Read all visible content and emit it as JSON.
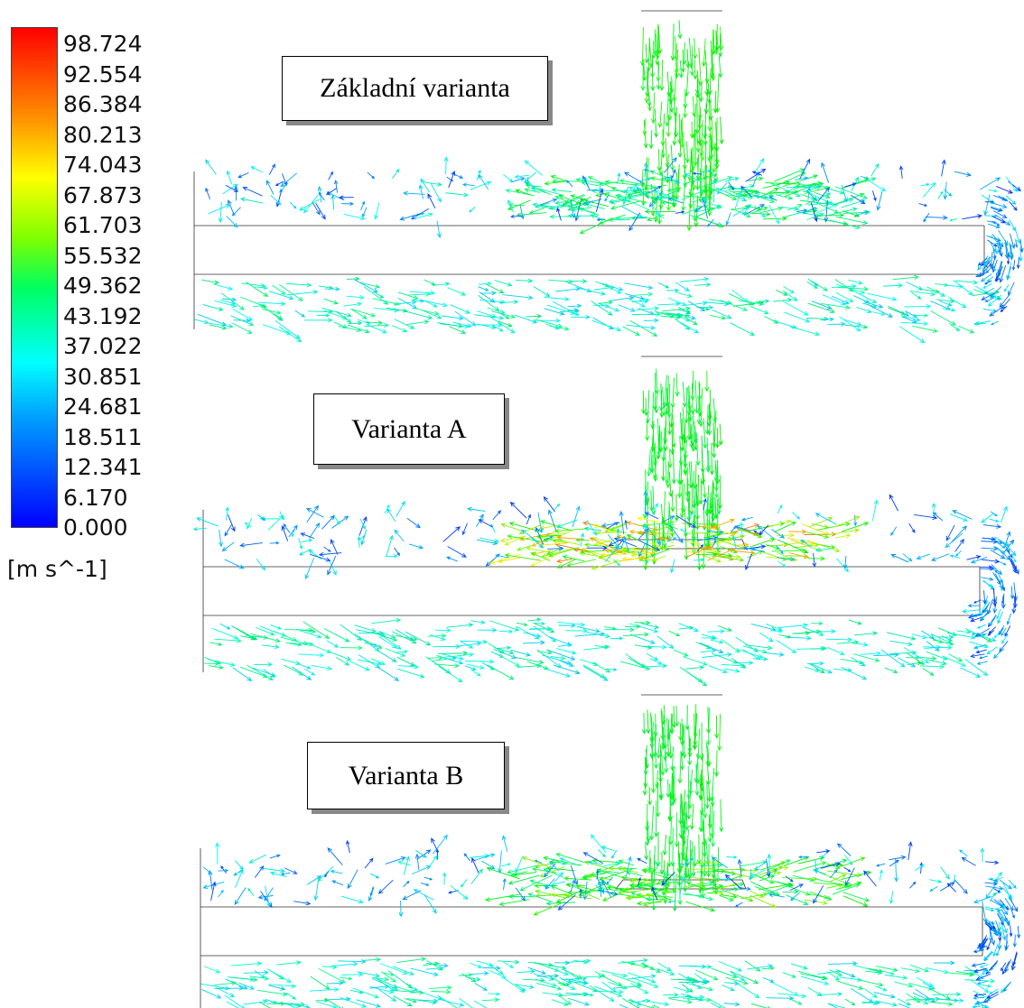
{
  "legend": {
    "ticks": [
      "98.724",
      "92.554",
      "86.384",
      "80.213",
      "74.043",
      "67.873",
      "61.703",
      "55.532",
      "49.362",
      "43.192",
      "37.022",
      "30.851",
      "24.681",
      "18.511",
      "12.341",
      "6.170",
      "0.000"
    ],
    "unit": "[m s^-1]"
  },
  "panels": [
    {
      "label": "Základní varianta"
    },
    {
      "label": "Varianta A"
    },
    {
      "label": "Varianta B"
    }
  ]
}
